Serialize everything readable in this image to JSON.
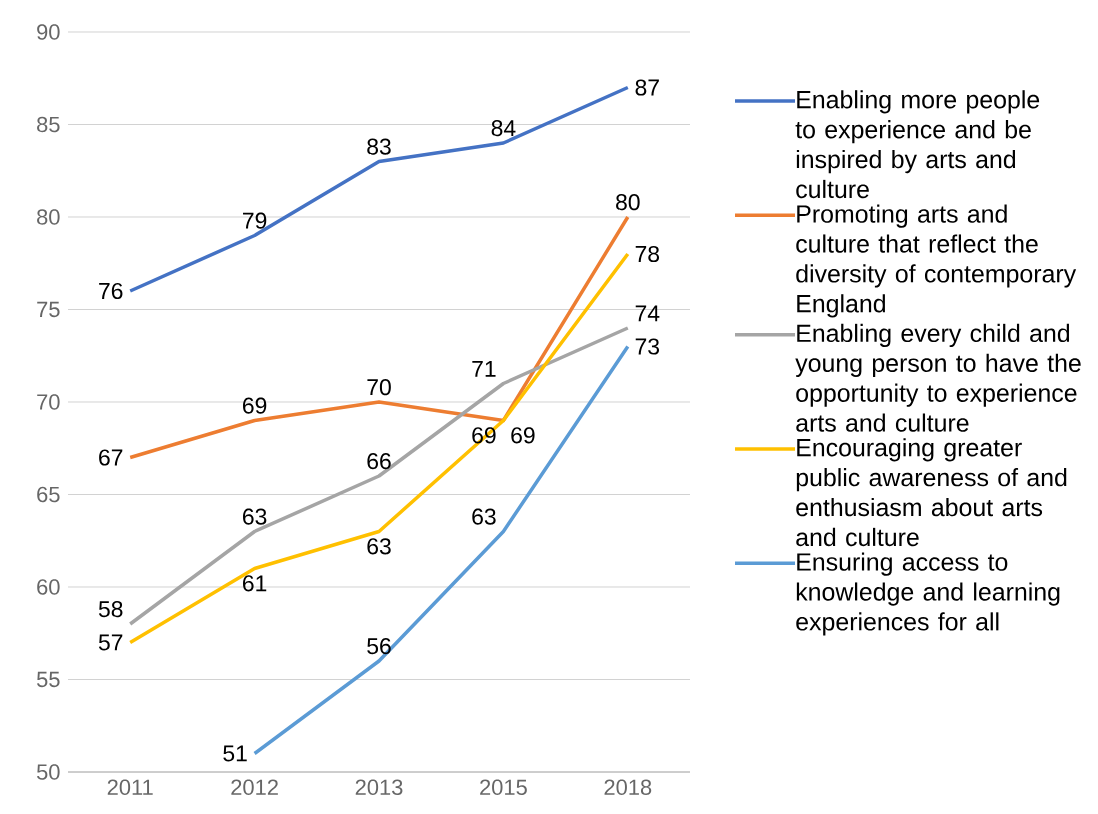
{
  "chart_data": {
    "type": "line",
    "categories": [
      "2011",
      "2012",
      "2013",
      "2015",
      "2018"
    ],
    "series": [
      {
        "name": "Enabling more people to experience and be inspired by arts and culture",
        "color": "#4472c4",
        "values": [
          76,
          79,
          83,
          84,
          87
        ]
      },
      {
        "name": "Promoting arts and culture that reflect the diversity of contemporary England",
        "color": "#ed7d31",
        "values": [
          67,
          69,
          70,
          69,
          80
        ]
      },
      {
        "name": "Enabling every child and young person to have the opportunity to experience arts and culture",
        "color": "#a5a5a5",
        "values": [
          58,
          63,
          66,
          71,
          74
        ]
      },
      {
        "name": "Encouraging greater public awareness of and enthusiasm about arts and culture",
        "color": "#ffc000",
        "values": [
          57,
          61,
          63,
          69,
          78
        ]
      },
      {
        "name": "Ensuring access to knowledge and learning experiences for all",
        "color": "#5b9bd5",
        "values": [
          null,
          51,
          56,
          63,
          73
        ]
      }
    ],
    "ylim": [
      50,
      90
    ],
    "yticks": [
      50,
      55,
      60,
      65,
      70,
      75,
      80,
      85,
      90
    ],
    "grid": "y",
    "legend": "right",
    "data_labels": true
  }
}
